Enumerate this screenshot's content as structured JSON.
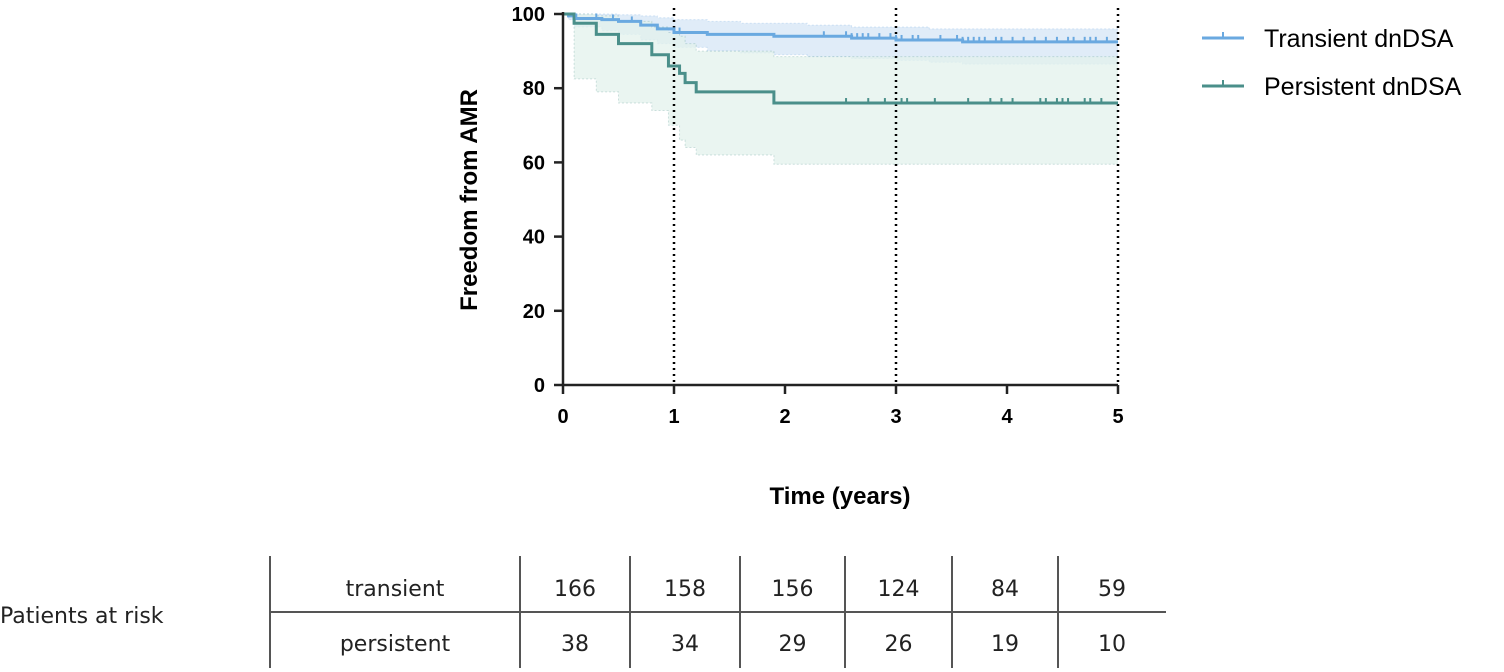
{
  "chart_data": {
    "type": "line",
    "subtype": "kaplan-meier",
    "title": "",
    "xlabel": "Time (years)",
    "ylabel": "Freedom from AMR",
    "xlim": [
      0,
      5
    ],
    "ylim": [
      0,
      100
    ],
    "x_ticks": [
      0,
      1,
      2,
      3,
      4,
      5
    ],
    "y_ticks": [
      0,
      20,
      40,
      60,
      80,
      100
    ],
    "reference_lines_x": [
      1,
      3,
      5
    ],
    "grid": false,
    "legend_position": "top-right",
    "series": [
      {
        "name": "Transient dnDSA",
        "color": "#6aa9e0",
        "band_color": "#d6e6f6",
        "step_x": [
          0,
          0.05,
          0.1,
          0.35,
          0.5,
          0.7,
          0.85,
          1.0,
          1.3,
          1.6,
          1.9,
          2.2,
          2.6,
          3.0,
          3.3,
          3.6,
          4.0,
          4.5,
          5.0
        ],
        "step_y": [
          100,
          99.5,
          98.8,
          98.5,
          98,
          97,
          96,
          95,
          94.5,
          94.5,
          94,
          94,
          93.5,
          93,
          93,
          92.5,
          92.5,
          92.5,
          92.5
        ],
        "ci_lower": [
          100,
          98.5,
          96.5,
          95.5,
          94.5,
          93,
          92,
          91,
          90,
          89.5,
          89,
          88.5,
          88,
          87.5,
          87,
          86.5,
          86.5,
          86.5,
          86.5
        ],
        "ci_upper": [
          100,
          100,
          100,
          100,
          99.8,
          99.5,
          99,
          98.5,
          98,
          97.5,
          97.5,
          97,
          96.5,
          96.5,
          96,
          96,
          96,
          96,
          96
        ],
        "censor_x": [
          0.12,
          0.3,
          0.45,
          0.62,
          1.05,
          2.35,
          2.55,
          2.6,
          2.65,
          2.7,
          2.75,
          2.85,
          2.95,
          3.0,
          3.05,
          3.15,
          3.2,
          3.4,
          3.55,
          3.6,
          3.65,
          3.7,
          3.75,
          3.8,
          3.9,
          3.95,
          4.05,
          4.15,
          4.25,
          4.35,
          4.45,
          4.55,
          4.6,
          4.7,
          4.75,
          4.8,
          4.9
        ]
      },
      {
        "name": "Persistent dnDSA",
        "color": "#4a8f8a",
        "band_color": "#e3f1ec",
        "step_x": [
          0,
          0.1,
          0.3,
          0.5,
          0.8,
          0.95,
          1.05,
          1.1,
          1.2,
          1.3,
          1.9,
          5.0
        ],
        "step_y": [
          100,
          97.5,
          94.5,
          92,
          89,
          86,
          84,
          81.5,
          79,
          79,
          76,
          76
        ],
        "ci_lower": [
          100,
          82.5,
          79,
          76,
          74,
          70,
          66,
          64,
          62,
          62,
          59.5,
          59.5
        ],
        "ci_upper": [
          100,
          100,
          99.5,
          98,
          96.5,
          95,
          94,
          92,
          90,
          90,
          88.5,
          88.5
        ],
        "censor_x": [
          2.55,
          2.75,
          2.9,
          3.05,
          3.1,
          3.35,
          3.65,
          3.85,
          3.95,
          4.05,
          4.3,
          4.35,
          4.45,
          4.5,
          4.55,
          4.7,
          4.75,
          4.85
        ]
      }
    ]
  },
  "risk_table": {
    "title": "Patients at risk",
    "rows": [
      {
        "label": "transient",
        "values": [
          "166",
          "158",
          "156",
          "124",
          "84",
          "59"
        ]
      },
      {
        "label": "persistent",
        "values": [
          "38",
          "34",
          "29",
          "26",
          "19",
          "10"
        ]
      }
    ]
  }
}
